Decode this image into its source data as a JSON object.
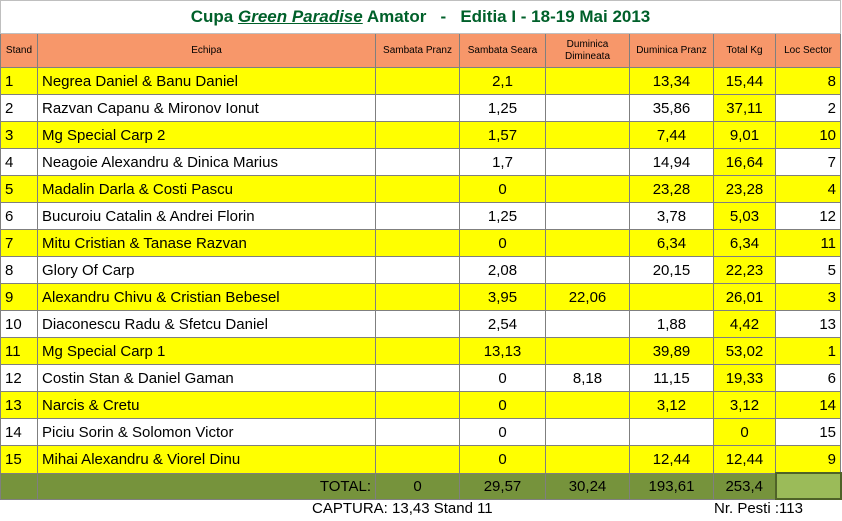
{
  "title": {
    "prefix": "Cupa",
    "brand": "Green Paradise",
    "suffix": "Amator   -   Editia I - 18-19 Mai 2013"
  },
  "table": {
    "columns": [
      "Stand",
      "Echipa",
      "Sambata Pranz",
      "Sambata Seara",
      "Duminica Dimineata",
      "Duminica Pranz",
      "Total Kg",
      "Loc Sector"
    ],
    "rows": [
      [
        "1",
        "Negrea Daniel & Banu Daniel",
        null,
        "2,1",
        null,
        "13,34",
        "15,44",
        "8"
      ],
      [
        "2",
        "Razvan Capanu & Mironov Ionut",
        null,
        "1,25",
        null,
        "35,86",
        "37,11",
        "2"
      ],
      [
        "3",
        "Mg Special Carp 2",
        null,
        "1,57",
        null,
        "7,44",
        "9,01",
        "10"
      ],
      [
        "4",
        "Neagoie Alexandru & Dinica Marius",
        null,
        "1,7",
        null,
        "14,94",
        "16,64",
        "7"
      ],
      [
        "5",
        "Madalin Darla & Costi Pascu",
        null,
        "0",
        null,
        "23,28",
        "23,28",
        "4"
      ],
      [
        "6",
        "Bucuroiu Catalin & Andrei Florin",
        null,
        "1,25",
        null,
        "3,78",
        "5,03",
        "12"
      ],
      [
        "7",
        "Mitu Cristian & Tanase Razvan",
        null,
        "0",
        null,
        "6,34",
        "6,34",
        "11"
      ],
      [
        "8",
        "Glory Of Carp",
        null,
        "2,08",
        null,
        "20,15",
        "22,23",
        "5"
      ],
      [
        "9",
        "Alexandru Chivu & Cristian Bebesel",
        null,
        "3,95",
        "22,06",
        null,
        "26,01",
        "3"
      ],
      [
        "10",
        "Diaconescu Radu & Sfetcu Daniel",
        null,
        "2,54",
        null,
        "1,88",
        "4,42",
        "13"
      ],
      [
        "11",
        "Mg Special Carp 1",
        null,
        "13,13",
        null,
        "39,89",
        "53,02",
        "1"
      ],
      [
        "12",
        "Costin Stan & Daniel Gaman",
        null,
        "0",
        "8,18",
        "11,15",
        "19,33",
        "6"
      ],
      [
        "13",
        "Narcis & Cretu",
        null,
        "0",
        null,
        "3,12",
        "3,12",
        "14"
      ],
      [
        "14",
        "Piciu Sorin & Solomon Victor",
        null,
        "0",
        null,
        null,
        "0",
        "15"
      ],
      [
        "15",
        "Mihai Alexandru & Viorel Dinu",
        null,
        "0",
        null,
        "12,44",
        "12,44",
        "9"
      ]
    ],
    "total": {
      "label": "TOTAL:",
      "values": [
        "0",
        "29,57",
        "30,24",
        "193,61",
        "253,4"
      ]
    }
  },
  "footer": {
    "captura": "CAPTURA:  13,43  Stand 11",
    "pesti": "Nr. Pesti :113"
  }
}
